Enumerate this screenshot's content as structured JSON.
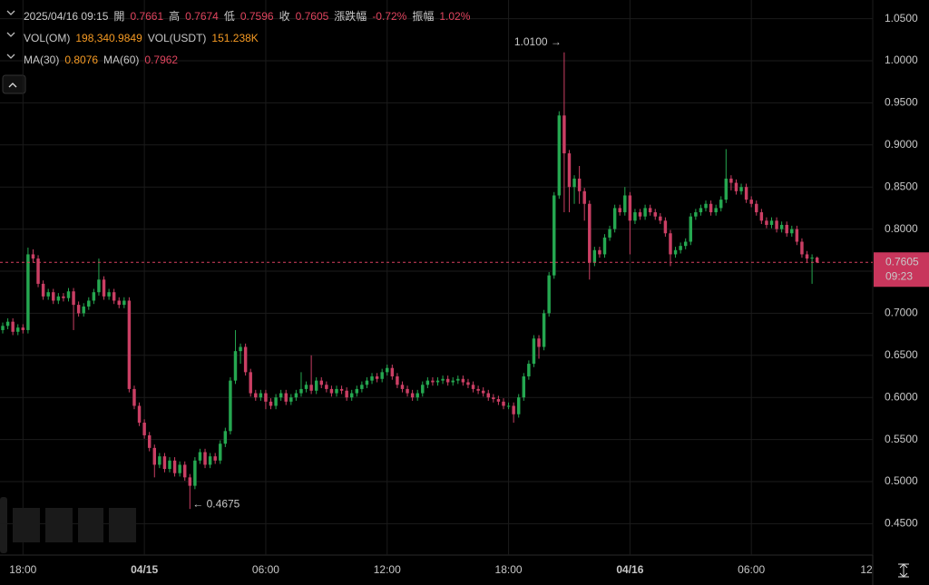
{
  "header": {
    "datetime": "2025/04/16 09:15",
    "ohlc": [
      {
        "label": "開",
        "value": "0.7661"
      },
      {
        "label": "高",
        "value": "0.7674"
      },
      {
        "label": "低",
        "value": "0.7596"
      },
      {
        "label": "收",
        "value": "0.7605"
      },
      {
        "label": "漲跌幅",
        "value": "-0.72%"
      },
      {
        "label": "振幅",
        "value": "1.02%"
      }
    ],
    "volume": [
      {
        "label": "VOL(OM)",
        "value": "198,340.9849"
      },
      {
        "label": "VOL(USDT)",
        "value": "151.238K"
      }
    ],
    "ma": [
      {
        "label": "MA(30)",
        "value": "0.8076"
      },
      {
        "label": "MA(60)",
        "value": "0.7962"
      }
    ]
  },
  "chart_data": {
    "type": "candlestick",
    "up_color": "#25a750",
    "down_color": "#ca3f64",
    "grid": true,
    "ylim": [
      0.4127,
      1.0722
    ],
    "yticks": [
      {
        "value": 0.45,
        "label": "0.4500"
      },
      {
        "value": 0.5,
        "label": "0.5000"
      },
      {
        "value": 0.55,
        "label": "0.5500"
      },
      {
        "value": 0.6,
        "label": "0.6000"
      },
      {
        "value": 0.65,
        "label": "0.6500"
      },
      {
        "value": 0.7,
        "label": "0.7000"
      },
      {
        "value": 0.75,
        "label": "0.7500"
      },
      {
        "value": 0.8,
        "label": "0.8000"
      },
      {
        "value": 0.85,
        "label": "0.8500"
      },
      {
        "value": 0.9,
        "label": "0.9000"
      },
      {
        "value": 0.95,
        "label": "0.9500"
      },
      {
        "value": 1.0,
        "label": "1.0000"
      },
      {
        "value": 1.05,
        "label": "1.0500"
      }
    ],
    "xlim": [
      -0.54,
      172
    ],
    "xticks": [
      {
        "value": 4,
        "label": "18:00"
      },
      {
        "value": 28,
        "label": "04/15"
      },
      {
        "value": 52,
        "label": "06:00"
      },
      {
        "value": 76,
        "label": "12:00"
      },
      {
        "value": 100,
        "label": "18:00"
      },
      {
        "value": 124,
        "label": "04/16"
      },
      {
        "value": 148,
        "label": "06:00"
      },
      {
        "value": 172,
        "label": "12"
      }
    ],
    "max_label": "1.0100 →",
    "min_label": "← 0.4675",
    "last_price": 0.7605,
    "last_time": "09:23",
    "candles": [
      [
        0.68,
        0.689,
        0.676,
        0.685
      ],
      [
        0.685,
        0.694,
        0.681,
        0.69
      ],
      [
        0.69,
        0.694,
        0.674,
        0.678
      ],
      [
        0.678,
        0.687,
        0.674,
        0.683
      ],
      [
        0.683,
        0.687,
        0.676,
        0.68
      ],
      [
        0.68,
        0.778,
        0.676,
        0.77
      ],
      [
        0.77,
        0.776,
        0.76,
        0.765
      ],
      [
        0.765,
        0.769,
        0.731,
        0.735
      ],
      [
        0.735,
        0.739,
        0.716,
        0.72
      ],
      [
        0.72,
        0.729,
        0.716,
        0.725
      ],
      [
        0.725,
        0.729,
        0.711,
        0.715
      ],
      [
        0.715,
        0.724,
        0.711,
        0.72
      ],
      [
        0.72,
        0.724,
        0.714,
        0.718
      ],
      [
        0.718,
        0.73,
        0.714,
        0.726
      ],
      [
        0.726,
        0.73,
        0.68,
        0.71
      ],
      [
        0.71,
        0.714,
        0.696,
        0.7
      ],
      [
        0.7,
        0.712,
        0.696,
        0.708
      ],
      [
        0.708,
        0.719,
        0.704,
        0.715
      ],
      [
        0.715,
        0.729,
        0.711,
        0.725
      ],
      [
        0.725,
        0.765,
        0.721,
        0.74
      ],
      [
        0.74,
        0.744,
        0.716,
        0.72
      ],
      [
        0.72,
        0.729,
        0.716,
        0.725
      ],
      [
        0.725,
        0.729,
        0.711,
        0.715
      ],
      [
        0.715,
        0.719,
        0.706,
        0.71
      ],
      [
        0.71,
        0.719,
        0.706,
        0.715
      ],
      [
        0.715,
        0.719,
        0.606,
        0.61
      ],
      [
        0.61,
        0.614,
        0.586,
        0.59
      ],
      [
        0.59,
        0.594,
        0.566,
        0.57
      ],
      [
        0.57,
        0.574,
        0.551,
        0.555
      ],
      [
        0.555,
        0.559,
        0.536,
        0.54
      ],
      [
        0.54,
        0.544,
        0.505,
        0.52
      ],
      [
        0.52,
        0.534,
        0.516,
        0.53
      ],
      [
        0.53,
        0.534,
        0.511,
        0.515
      ],
      [
        0.515,
        0.529,
        0.511,
        0.525
      ],
      [
        0.525,
        0.529,
        0.506,
        0.51
      ],
      [
        0.51,
        0.524,
        0.506,
        0.52
      ],
      [
        0.52,
        0.524,
        0.501,
        0.505
      ],
      [
        0.505,
        0.509,
        0.4675,
        0.495
      ],
      [
        0.495,
        0.529,
        0.491,
        0.525
      ],
      [
        0.525,
        0.539,
        0.521,
        0.535
      ],
      [
        0.535,
        0.539,
        0.516,
        0.52
      ],
      [
        0.52,
        0.534,
        0.516,
        0.53
      ],
      [
        0.53,
        0.534,
        0.521,
        0.525
      ],
      [
        0.525,
        0.549,
        0.521,
        0.545
      ],
      [
        0.545,
        0.564,
        0.541,
        0.56
      ],
      [
        0.56,
        0.624,
        0.556,
        0.62
      ],
      [
        0.62,
        0.68,
        0.616,
        0.655
      ],
      [
        0.655,
        0.664,
        0.64,
        0.66
      ],
      [
        0.66,
        0.664,
        0.626,
        0.63
      ],
      [
        0.63,
        0.634,
        0.601,
        0.605
      ],
      [
        0.605,
        0.609,
        0.596,
        0.6
      ],
      [
        0.6,
        0.609,
        0.596,
        0.605
      ],
      [
        0.605,
        0.609,
        0.586,
        0.595
      ],
      [
        0.595,
        0.599,
        0.586,
        0.59
      ],
      [
        0.59,
        0.604,
        0.586,
        0.6
      ],
      [
        0.6,
        0.609,
        0.596,
        0.605
      ],
      [
        0.605,
        0.609,
        0.591,
        0.595
      ],
      [
        0.595,
        0.604,
        0.591,
        0.6
      ],
      [
        0.6,
        0.609,
        0.596,
        0.605
      ],
      [
        0.605,
        0.63,
        0.601,
        0.61
      ],
      [
        0.61,
        0.619,
        0.606,
        0.615
      ],
      [
        0.615,
        0.65,
        0.604,
        0.608
      ],
      [
        0.608,
        0.624,
        0.604,
        0.62
      ],
      [
        0.62,
        0.624,
        0.611,
        0.615
      ],
      [
        0.615,
        0.619,
        0.606,
        0.61
      ],
      [
        0.61,
        0.614,
        0.601,
        0.605
      ],
      [
        0.605,
        0.614,
        0.601,
        0.61
      ],
      [
        0.61,
        0.614,
        0.604,
        0.608
      ],
      [
        0.608,
        0.612,
        0.596,
        0.6
      ],
      [
        0.6,
        0.609,
        0.596,
        0.605
      ],
      [
        0.605,
        0.614,
        0.601,
        0.61
      ],
      [
        0.61,
        0.619,
        0.606,
        0.615
      ],
      [
        0.615,
        0.624,
        0.611,
        0.62
      ],
      [
        0.62,
        0.629,
        0.616,
        0.625
      ],
      [
        0.625,
        0.629,
        0.618,
        0.622
      ],
      [
        0.622,
        0.634,
        0.618,
        0.63
      ],
      [
        0.63,
        0.639,
        0.626,
        0.635
      ],
      [
        0.635,
        0.639,
        0.621,
        0.625
      ],
      [
        0.625,
        0.629,
        0.611,
        0.615
      ],
      [
        0.615,
        0.619,
        0.606,
        0.61
      ],
      [
        0.61,
        0.614,
        0.601,
        0.605
      ],
      [
        0.605,
        0.609,
        0.596,
        0.6
      ],
      [
        0.6,
        0.609,
        0.596,
        0.605
      ],
      [
        0.605,
        0.619,
        0.601,
        0.615
      ],
      [
        0.615,
        0.624,
        0.611,
        0.62
      ],
      [
        0.62,
        0.624,
        0.614,
        0.618
      ],
      [
        0.618,
        0.624,
        0.614,
        0.62
      ],
      [
        0.62,
        0.626,
        0.616,
        0.622
      ],
      [
        0.622,
        0.626,
        0.614,
        0.618
      ],
      [
        0.618,
        0.624,
        0.614,
        0.62
      ],
      [
        0.62,
        0.626,
        0.616,
        0.622
      ],
      [
        0.622,
        0.626,
        0.614,
        0.618
      ],
      [
        0.618,
        0.622,
        0.611,
        0.615
      ],
      [
        0.615,
        0.619,
        0.606,
        0.61
      ],
      [
        0.61,
        0.614,
        0.604,
        0.608
      ],
      [
        0.608,
        0.612,
        0.601,
        0.605
      ],
      [
        0.605,
        0.609,
        0.596,
        0.6
      ],
      [
        0.6,
        0.604,
        0.594,
        0.598
      ],
      [
        0.598,
        0.602,
        0.591,
        0.595
      ],
      [
        0.595,
        0.599,
        0.586,
        0.59
      ],
      [
        0.59,
        0.594,
        0.586,
        0.59
      ],
      [
        0.59,
        0.594,
        0.57,
        0.58
      ],
      [
        0.58,
        0.604,
        0.576,
        0.6
      ],
      [
        0.6,
        0.629,
        0.596,
        0.625
      ],
      [
        0.625,
        0.644,
        0.621,
        0.64
      ],
      [
        0.64,
        0.674,
        0.636,
        0.67
      ],
      [
        0.67,
        0.674,
        0.646,
        0.66
      ],
      [
        0.66,
        0.704,
        0.656,
        0.7
      ],
      [
        0.7,
        0.749,
        0.696,
        0.745
      ],
      [
        0.745,
        0.844,
        0.741,
        0.84
      ],
      [
        0.84,
        0.94,
        0.836,
        0.935
      ],
      [
        0.935,
        1.01,
        0.82,
        0.89
      ],
      [
        0.89,
        0.894,
        0.82,
        0.85
      ],
      [
        0.85,
        0.864,
        0.83,
        0.86
      ],
      [
        0.86,
        0.875,
        0.83,
        0.845
      ],
      [
        0.845,
        0.849,
        0.81,
        0.83
      ],
      [
        0.83,
        0.834,
        0.74,
        0.76
      ],
      [
        0.76,
        0.779,
        0.756,
        0.775
      ],
      [
        0.775,
        0.779,
        0.766,
        0.77
      ],
      [
        0.77,
        0.794,
        0.766,
        0.79
      ],
      [
        0.79,
        0.804,
        0.786,
        0.8
      ],
      [
        0.8,
        0.829,
        0.796,
        0.825
      ],
      [
        0.825,
        0.829,
        0.816,
        0.82
      ],
      [
        0.82,
        0.85,
        0.816,
        0.84
      ],
      [
        0.84,
        0.844,
        0.77,
        0.81
      ],
      [
        0.81,
        0.824,
        0.806,
        0.82
      ],
      [
        0.82,
        0.824,
        0.811,
        0.815
      ],
      [
        0.815,
        0.829,
        0.811,
        0.825
      ],
      [
        0.825,
        0.829,
        0.816,
        0.82
      ],
      [
        0.82,
        0.824,
        0.811,
        0.815
      ],
      [
        0.815,
        0.819,
        0.806,
        0.81
      ],
      [
        0.81,
        0.814,
        0.791,
        0.795
      ],
      [
        0.795,
        0.799,
        0.756,
        0.77
      ],
      [
        0.77,
        0.779,
        0.766,
        0.775
      ],
      [
        0.775,
        0.784,
        0.771,
        0.78
      ],
      [
        0.78,
        0.789,
        0.776,
        0.785
      ],
      [
        0.785,
        0.819,
        0.781,
        0.815
      ],
      [
        0.815,
        0.824,
        0.811,
        0.82
      ],
      [
        0.82,
        0.829,
        0.816,
        0.825
      ],
      [
        0.825,
        0.834,
        0.821,
        0.83
      ],
      [
        0.83,
        0.834,
        0.816,
        0.82
      ],
      [
        0.82,
        0.829,
        0.816,
        0.825
      ],
      [
        0.825,
        0.839,
        0.821,
        0.835
      ],
      [
        0.835,
        0.895,
        0.831,
        0.86
      ],
      [
        0.86,
        0.864,
        0.846,
        0.855
      ],
      [
        0.855,
        0.859,
        0.841,
        0.845
      ],
      [
        0.845,
        0.854,
        0.841,
        0.85
      ],
      [
        0.85,
        0.854,
        0.831,
        0.835
      ],
      [
        0.835,
        0.839,
        0.826,
        0.83
      ],
      [
        0.83,
        0.834,
        0.816,
        0.82
      ],
      [
        0.82,
        0.824,
        0.806,
        0.81
      ],
      [
        0.81,
        0.814,
        0.801,
        0.805
      ],
      [
        0.805,
        0.814,
        0.801,
        0.81
      ],
      [
        0.81,
        0.814,
        0.796,
        0.8
      ],
      [
        0.8,
        0.809,
        0.796,
        0.805
      ],
      [
        0.805,
        0.809,
        0.791,
        0.795
      ],
      [
        0.795,
        0.804,
        0.791,
        0.8
      ],
      [
        0.8,
        0.804,
        0.781,
        0.785
      ],
      [
        0.785,
        0.789,
        0.766,
        0.77
      ],
      [
        0.77,
        0.774,
        0.761,
        0.765
      ],
      [
        0.765,
        0.77,
        0.735,
        0.7661
      ],
      [
        0.7661,
        0.7674,
        0.7596,
        0.7605
      ]
    ]
  }
}
